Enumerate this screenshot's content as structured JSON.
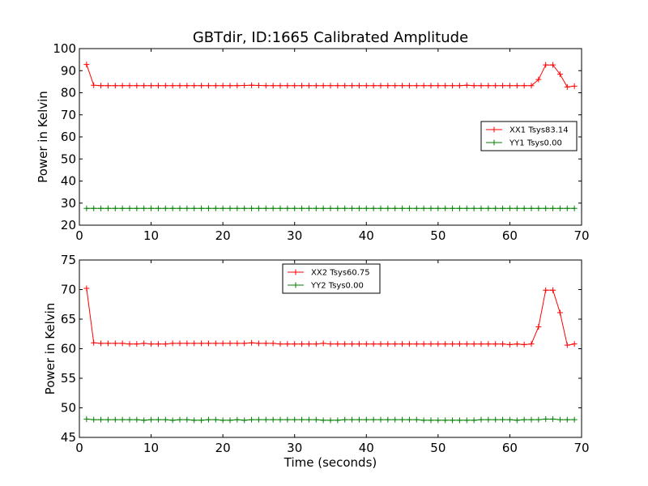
{
  "chart_data": [
    {
      "type": "line",
      "title": "GBTdir, ID:1665 Calibrated Amplitude",
      "xlabel": "",
      "ylabel": "Power in Kelvin",
      "xlim": [
        0,
        70
      ],
      "ylim": [
        20,
        100
      ],
      "xticks": [
        0,
        10,
        20,
        30,
        40,
        50,
        60,
        70
      ],
      "yticks": [
        20,
        30,
        40,
        50,
        60,
        70,
        80,
        90,
        100
      ],
      "grid": false,
      "legend_position": "right",
      "x": [
        1,
        2,
        3,
        4,
        5,
        6,
        7,
        8,
        9,
        10,
        11,
        12,
        13,
        14,
        15,
        16,
        17,
        18,
        19,
        20,
        21,
        22,
        23,
        24,
        25,
        26,
        27,
        28,
        29,
        30,
        31,
        32,
        33,
        34,
        35,
        36,
        37,
        38,
        39,
        40,
        41,
        42,
        43,
        44,
        45,
        46,
        47,
        48,
        49,
        50,
        51,
        52,
        53,
        54,
        55,
        56,
        57,
        58,
        59,
        60,
        61,
        62,
        63,
        64,
        65,
        66,
        67,
        68,
        69
      ],
      "series": [
        {
          "name": "XX1 Tsys83.14",
          "color": "#ff0000",
          "values": [
            92.8,
            83.4,
            83.2,
            83.2,
            83.2,
            83.2,
            83.2,
            83.2,
            83.2,
            83.2,
            83.2,
            83.2,
            83.2,
            83.2,
            83.2,
            83.2,
            83.2,
            83.2,
            83.2,
            83.2,
            83.2,
            83.2,
            83.3,
            83.4,
            83.3,
            83.2,
            83.2,
            83.2,
            83.2,
            83.2,
            83.2,
            83.2,
            83.2,
            83.2,
            83.2,
            83.2,
            83.2,
            83.2,
            83.2,
            83.2,
            83.2,
            83.2,
            83.2,
            83.2,
            83.2,
            83.2,
            83.2,
            83.2,
            83.2,
            83.2,
            83.2,
            83.2,
            83.2,
            83.4,
            83.2,
            83.2,
            83.2,
            83.2,
            83.2,
            83.2,
            83.2,
            83.2,
            83.2,
            86.0,
            92.6,
            92.6,
            88.4,
            82.6,
            83.0
          ]
        },
        {
          "name": "YY1 Tsys0.00",
          "color": "#008000",
          "values": [
            27.6,
            27.6,
            27.6,
            27.6,
            27.6,
            27.6,
            27.6,
            27.6,
            27.6,
            27.6,
            27.6,
            27.6,
            27.6,
            27.6,
            27.6,
            27.6,
            27.6,
            27.6,
            27.6,
            27.6,
            27.6,
            27.6,
            27.6,
            27.6,
            27.6,
            27.6,
            27.6,
            27.6,
            27.6,
            27.6,
            27.6,
            27.6,
            27.6,
            27.6,
            27.6,
            27.6,
            27.6,
            27.6,
            27.6,
            27.6,
            27.6,
            27.6,
            27.6,
            27.6,
            27.6,
            27.6,
            27.6,
            27.6,
            27.6,
            27.6,
            27.6,
            27.6,
            27.6,
            27.6,
            27.6,
            27.6,
            27.6,
            27.6,
            27.6,
            27.6,
            27.6,
            27.6,
            27.6,
            27.6,
            27.6,
            27.6,
            27.6,
            27.6,
            27.6
          ]
        }
      ]
    },
    {
      "type": "line",
      "title": "",
      "xlabel": "Time (seconds)",
      "ylabel": "Power in Kelvin",
      "xlim": [
        0,
        70
      ],
      "ylim": [
        45,
        75
      ],
      "xticks": [
        0,
        10,
        20,
        30,
        40,
        50,
        60,
        70
      ],
      "yticks": [
        45,
        50,
        55,
        60,
        65,
        70,
        75
      ],
      "grid": false,
      "legend_position": "top-center",
      "x": [
        1,
        2,
        3,
        4,
        5,
        6,
        7,
        8,
        9,
        10,
        11,
        12,
        13,
        14,
        15,
        16,
        17,
        18,
        19,
        20,
        21,
        22,
        23,
        24,
        25,
        26,
        27,
        28,
        29,
        30,
        31,
        32,
        33,
        34,
        35,
        36,
        37,
        38,
        39,
        40,
        41,
        42,
        43,
        44,
        45,
        46,
        47,
        48,
        49,
        50,
        51,
        52,
        53,
        54,
        55,
        56,
        57,
        58,
        59,
        60,
        61,
        62,
        63,
        64,
        65,
        66,
        67,
        68,
        69
      ],
      "series": [
        {
          "name": "XX2 Tsys60.75",
          "color": "#ff0000",
          "values": [
            70.2,
            61.0,
            60.9,
            60.9,
            60.9,
            60.9,
            60.8,
            60.8,
            60.9,
            60.8,
            60.8,
            60.8,
            60.9,
            60.9,
            60.9,
            60.9,
            60.9,
            60.9,
            60.9,
            60.9,
            60.9,
            60.9,
            60.9,
            61.0,
            60.9,
            60.9,
            60.9,
            60.8,
            60.8,
            60.8,
            60.8,
            60.8,
            60.8,
            60.9,
            60.8,
            60.8,
            60.8,
            60.8,
            60.8,
            60.8,
            60.8,
            60.8,
            60.8,
            60.8,
            60.8,
            60.8,
            60.8,
            60.8,
            60.8,
            60.8,
            60.8,
            60.8,
            60.8,
            60.8,
            60.8,
            60.8,
            60.8,
            60.8,
            60.8,
            60.7,
            60.8,
            60.7,
            60.8,
            63.7,
            69.9,
            69.9,
            66.1,
            60.6,
            60.8
          ]
        },
        {
          "name": "YY2 Tsys0.00",
          "color": "#008000",
          "values": [
            48.1,
            48.0,
            48.0,
            48.0,
            48.0,
            48.0,
            48.0,
            48.0,
            47.9,
            48.0,
            48.0,
            48.0,
            47.9,
            48.0,
            48.0,
            47.9,
            47.9,
            48.0,
            48.0,
            47.9,
            47.9,
            48.0,
            47.9,
            48.0,
            48.0,
            48.0,
            48.0,
            48.0,
            48.0,
            48.0,
            48.0,
            48.0,
            48.0,
            47.9,
            47.9,
            47.9,
            48.0,
            48.0,
            48.0,
            48.0,
            48.0,
            48.0,
            48.0,
            48.0,
            48.0,
            48.0,
            48.0,
            47.9,
            47.9,
            47.9,
            47.9,
            47.9,
            47.9,
            47.9,
            47.9,
            48.0,
            48.0,
            48.0,
            48.0,
            48.0,
            47.9,
            48.0,
            48.0,
            48.0,
            48.1,
            48.1,
            48.0,
            48.0,
            48.0
          ]
        }
      ]
    }
  ]
}
